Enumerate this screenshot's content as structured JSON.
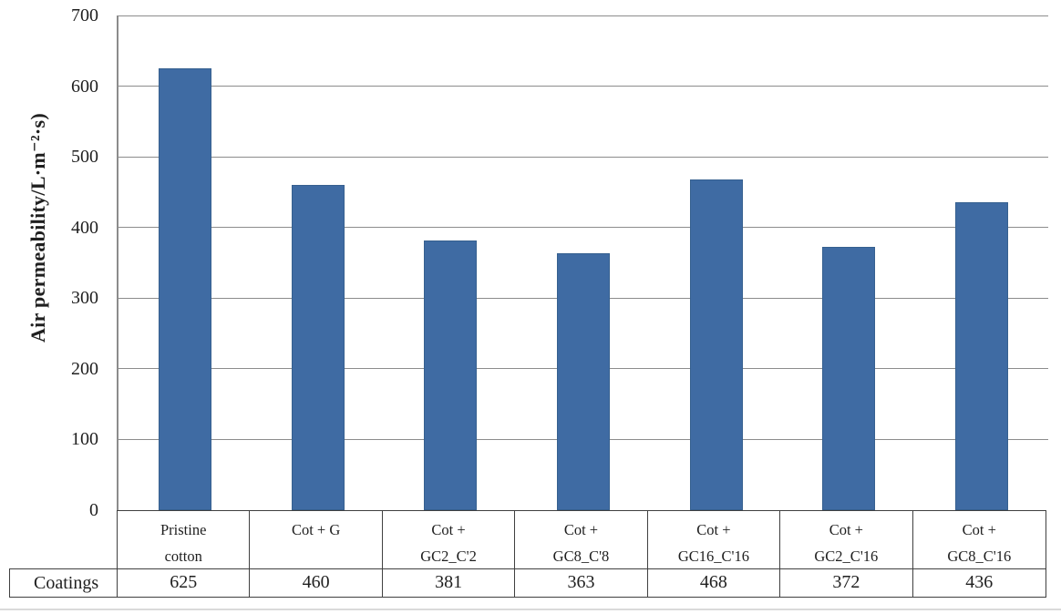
{
  "chart_data": {
    "type": "bar",
    "title": "",
    "xlabel": "",
    "ylabel": "Air permeability/L·m⁻²·s)",
    "ylim": [
      0,
      700
    ],
    "yticks": [
      0,
      100,
      200,
      300,
      400,
      500,
      600,
      700
    ],
    "grid": true,
    "legend_position": "bottom-left-table",
    "data_table_shown": true,
    "categories": [
      "Pristine cotton",
      "Cot + G",
      "Cot + GC2_C'2",
      "Cot + GC8_C'8",
      "Cot + GC16_C'16",
      "Cot + GC2_C'16",
      "Cot + GC8_C'16"
    ],
    "category_label_lines": [
      [
        "Pristine",
        "cotton"
      ],
      [
        "Cot + G"
      ],
      [
        "Cot +",
        "GC2_C'2"
      ],
      [
        "Cot +",
        "GC8_C'8"
      ],
      [
        "Cot +",
        "GC16_C'16"
      ],
      [
        "Cot +",
        "GC2_C'16"
      ],
      [
        "Cot +",
        "GC8_C'16"
      ]
    ],
    "series": [
      {
        "name": "Coatings",
        "values": [
          625,
          460,
          381,
          363,
          468,
          372,
          436
        ]
      }
    ],
    "colors": {
      "bar": "#3F6BA3",
      "bar_border": "#36608F",
      "gridline": "#8C8C8C",
      "axis": "#8C8C8C",
      "table_border": "#404040",
      "text": "#1F1F1F"
    }
  },
  "legend": {
    "swatch_icon": "blue-square-icon",
    "label": "Coatings"
  }
}
